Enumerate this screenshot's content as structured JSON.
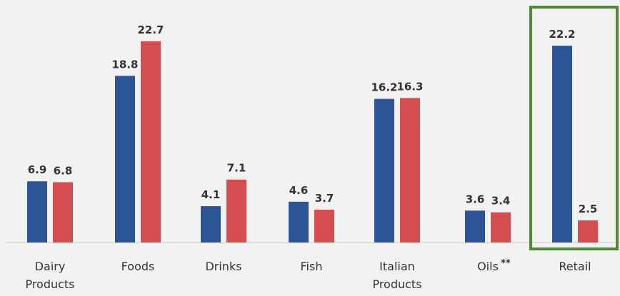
{
  "chart_data": {
    "type": "bar",
    "categories": [
      {
        "lines": [
          "Dairy",
          "Products"
        ],
        "suffix": ""
      },
      {
        "lines": [
          "Foods"
        ],
        "suffix": ""
      },
      {
        "lines": [
          "Drinks"
        ],
        "suffix": ""
      },
      {
        "lines": [
          "Fish"
        ],
        "suffix": ""
      },
      {
        "lines": [
          "Italian",
          "Products"
        ],
        "suffix": ""
      },
      {
        "lines": [
          "Oils"
        ],
        "suffix": "**"
      },
      {
        "lines": [
          "Retail"
        ],
        "suffix": ""
      }
    ],
    "series": [
      {
        "color": "#2b5597",
        "values": [
          6.9,
          18.8,
          4.1,
          4.6,
          16.2,
          3.6,
          22.2
        ],
        "labels": [
          "6.9",
          "18.8",
          "4.1",
          "4.6",
          "16.2",
          "3.6",
          "22.2"
        ]
      },
      {
        "color": "#d54d4f",
        "values": [
          6.8,
          22.7,
          7.1,
          3.7,
          16.3,
          3.4,
          2.5
        ],
        "labels": [
          "6.8",
          "22.7",
          "7.1",
          "3.7",
          "16.3",
          "3.4",
          "2.5"
        ]
      }
    ],
    "ylim": [
      0,
      25
    ],
    "grid": false,
    "highlight": {
      "category_index": 6,
      "color": "#4e8a36"
    },
    "baseline_color": "#cccccc",
    "background": "#f2f2f2"
  }
}
